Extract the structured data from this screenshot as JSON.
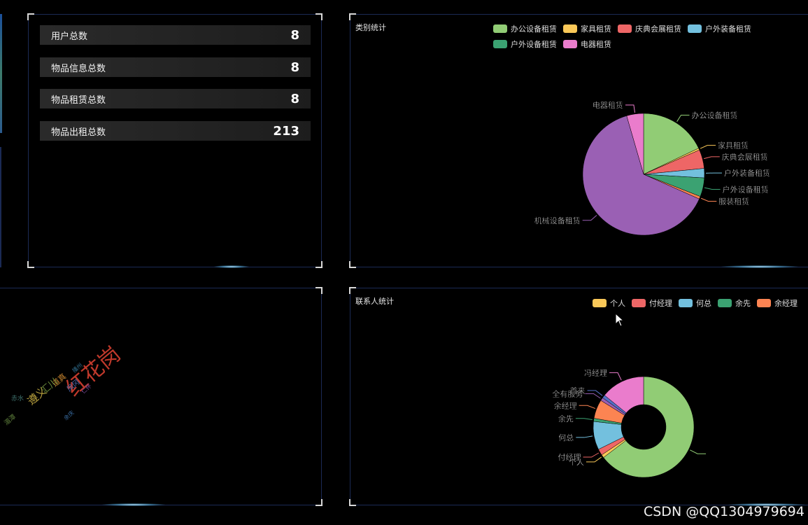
{
  "stats": [
    {
      "label": "用户总数",
      "value": "8"
    },
    {
      "label": "物品信息总数",
      "value": "8"
    },
    {
      "label": "物品租赁总数",
      "value": "8"
    },
    {
      "label": "物品出租总数",
      "value": "213"
    }
  ],
  "wordcloud": {
    "words": [
      {
        "text": "红花岗",
        "color": "#c0392b"
      },
      {
        "text": "遵义",
        "color": "#b9a13e"
      },
      {
        "text": "道真",
        "color": "#c7842f"
      },
      {
        "text": "凤冈",
        "color": "#4f6bb5"
      },
      {
        "text": "湄潭",
        "color": "#5c7c3a"
      },
      {
        "text": "余庆",
        "color": "#3a6ea5"
      },
      {
        "text": "汇川",
        "color": "#6b8b3c"
      },
      {
        "text": "播州",
        "color": "#2f6b8a"
      },
      {
        "text": "赤水",
        "color": "#3d6f6b"
      },
      {
        "text": "仁怀",
        "color": "#7a4b9a"
      }
    ]
  },
  "watermark": "CSDN @QQ1304979694",
  "chart_data": [
    {
      "type": "pie",
      "title": "类别统计",
      "legend": [
        "办公设备租赁",
        "家具租赁",
        "庆典会展租赁",
        "户外装备租赁",
        "户外设备租赁",
        "电器租赁"
      ],
      "categories": [
        "办公设备租赁",
        "家具租赁",
        "庆典会展租赁",
        "户外装备租赁",
        "户外设备租赁",
        "服装租赁",
        "机械设备租赁",
        "电器租赁"
      ],
      "values": [
        18,
        0.5,
        5,
        2.5,
        5,
        0.7,
        64,
        4.5
      ],
      "colors": [
        "#91cc75",
        "#fac858",
        "#ee6666",
        "#73c0de",
        "#3ba272",
        "#fc8452",
        "#9a60b4",
        "#ea7ccc"
      ]
    },
    {
      "type": "pie",
      "title": "联系人统计",
      "legend": [
        "个人",
        "付经理",
        "何总",
        "余先",
        "余经理"
      ],
      "categories": [
        "",
        "个人",
        "付经理",
        "何总",
        "余先",
        "余经理",
        "全有服务",
        "首来",
        "冯经理"
      ],
      "values": [
        64,
        1,
        2,
        9,
        1,
        6,
        1,
        1,
        14
      ],
      "colors": [
        "#91cc75",
        "#fac858",
        "#ee6666",
        "#73c0de",
        "#3ba272",
        "#fc8452",
        "#9a60b4",
        "#5470c6",
        "#ea7ccc"
      ],
      "radius_inner_ratio": 0.45
    }
  ]
}
